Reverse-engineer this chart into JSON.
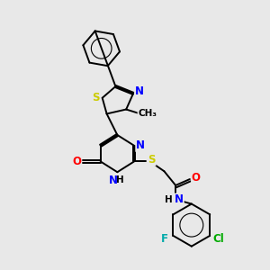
{
  "bg_color": "#e8e8e8",
  "bond_color": "#000000",
  "atom_colors": {
    "N": "#0000ff",
    "O": "#ff0000",
    "S": "#cccc00",
    "F": "#00aaaa",
    "Cl": "#00aa00",
    "H": "#000000"
  },
  "line_width": 1.4,
  "font_size": 8.5
}
